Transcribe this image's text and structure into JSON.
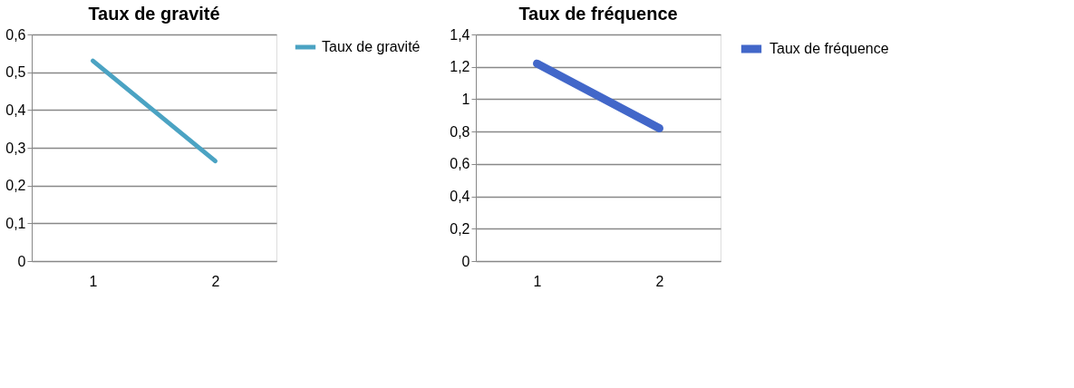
{
  "chart_data": [
    {
      "type": "line",
      "title": "Taux de gravité",
      "categories": [
        "1",
        "2"
      ],
      "series": [
        {
          "name": "Taux de gravité",
          "color": "#4ba3c3",
          "values": [
            0.53,
            0.265
          ]
        }
      ],
      "ylim": [
        0,
        0.6
      ],
      "yticks": [
        0,
        {
          "value": 0.1,
          "label": "0,1"
        },
        {
          "value": 0.2,
          "label": "0,2"
        },
        {
          "value": 0.3,
          "label": "0,3"
        },
        {
          "value": 0.4,
          "label": "0,4"
        },
        {
          "value": 0.5,
          "label": "0,5"
        },
        {
          "value": 0.6,
          "label": "0,6"
        }
      ],
      "grid": "y",
      "legend": "right",
      "marker": "none"
    },
    {
      "type": "line",
      "title": "Taux de fréquence",
      "categories": [
        "1",
        "2"
      ],
      "series": [
        {
          "name": "Taux de fréquence",
          "color": "#4267c9",
          "values": [
            1.22,
            0.82
          ]
        }
      ],
      "ylim": [
        0,
        1.4
      ],
      "yticks": [
        0,
        {
          "value": 0.2,
          "label": "0,2"
        },
        {
          "value": 0.4,
          "label": "0,4"
        },
        {
          "value": 0.6,
          "label": "0,6"
        },
        {
          "value": 0.8,
          "label": "0,8"
        },
        1,
        {
          "value": 1.2,
          "label": "1,2"
        },
        {
          "value": 1.4,
          "label": "1,4"
        }
      ],
      "grid": "y",
      "legend": "right",
      "marker": "none"
    }
  ]
}
